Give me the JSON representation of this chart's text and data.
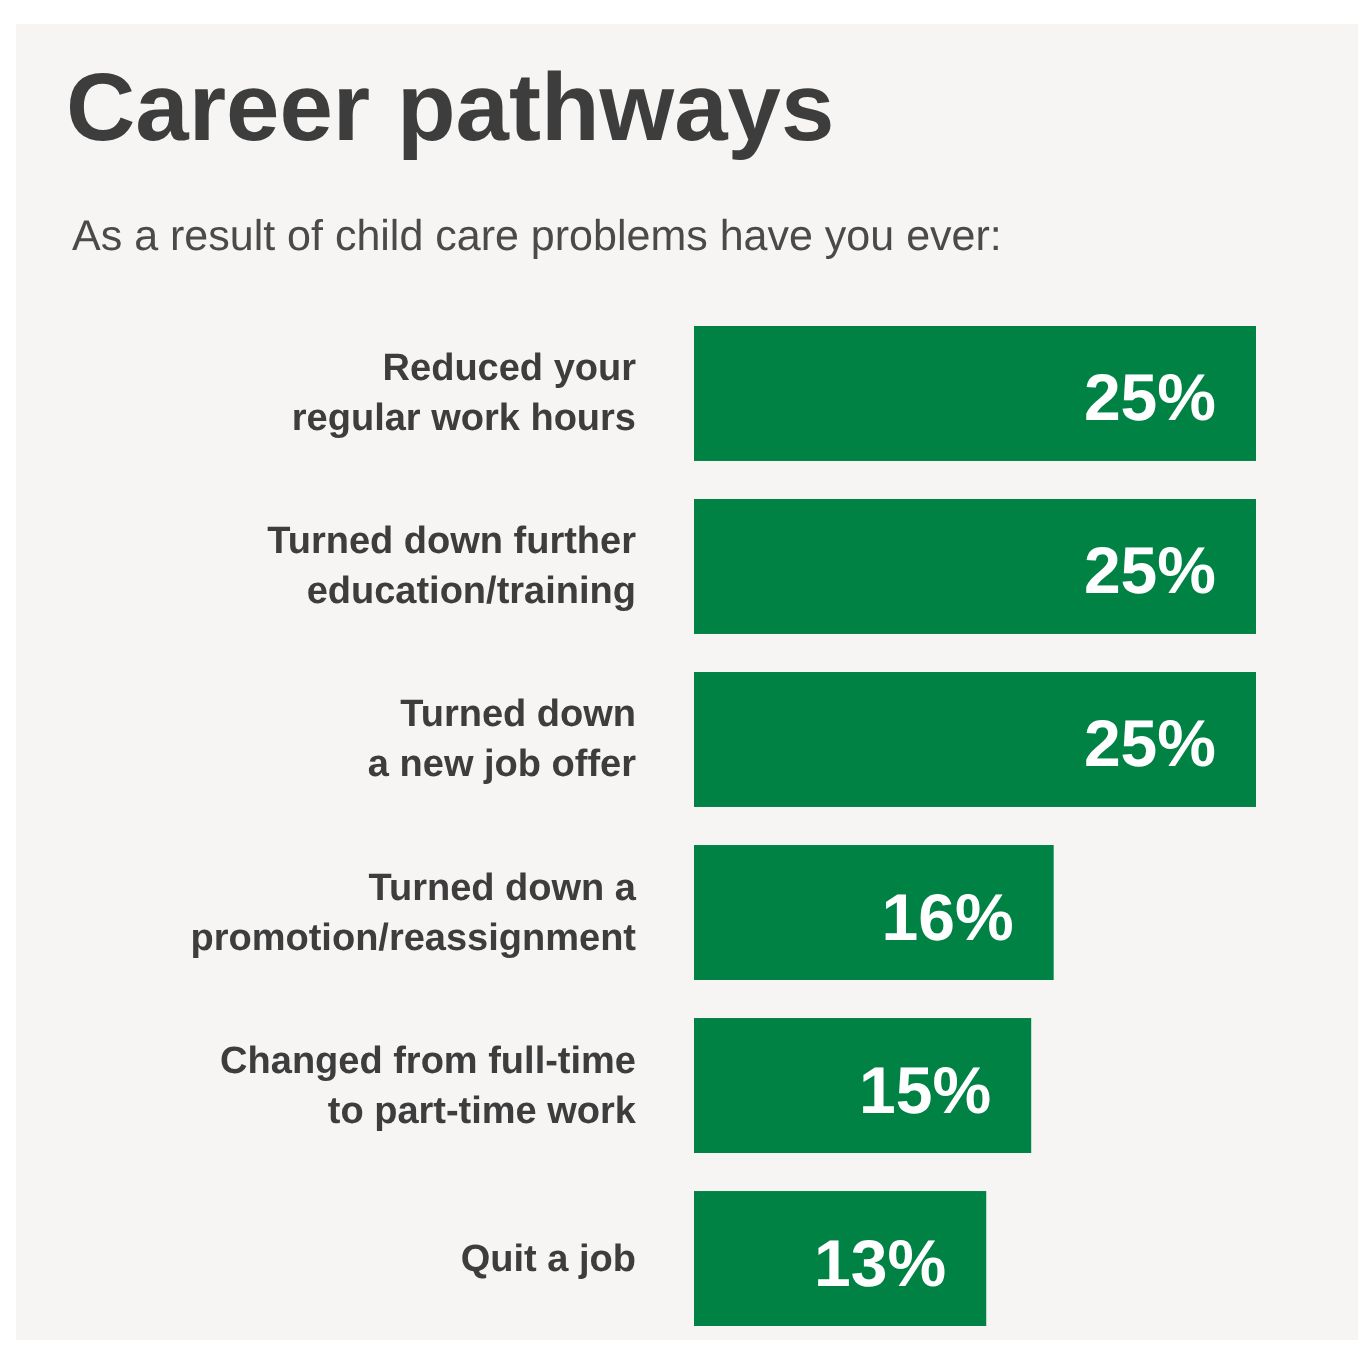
{
  "chart_data": {
    "type": "bar",
    "orientation": "horizontal",
    "title": "Career pathways",
    "subtitle": "As a result of child care problems have you ever:",
    "categories": [
      "Reduced your\nregular work hours",
      "Turned down further\neducation/training",
      "Turned down\na new job offer",
      "Turned down a\npromotion/reassignment",
      "Changed from full-time\nto part-time work",
      "Quit a job"
    ],
    "values": [
      25,
      25,
      25,
      16,
      15,
      13
    ],
    "value_labels": [
      "25%",
      "25%",
      "25%",
      "16%",
      "15%",
      "13%"
    ],
    "color": "#008244",
    "xlim": [
      0,
      25
    ]
  }
}
